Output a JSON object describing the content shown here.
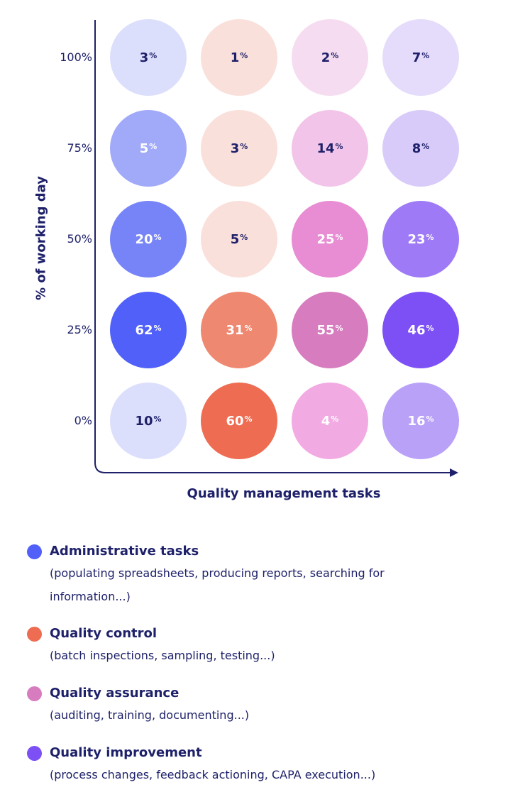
{
  "chart_data": {
    "type": "bubble-grid",
    "xlabel": "Quality management tasks",
    "ylabel": "% of working day",
    "y_ticks": [
      "100%",
      "75%",
      "50%",
      "25%",
      "0%"
    ],
    "categories": [
      "Administrative tasks",
      "Quality control",
      "Quality assurance",
      "Quality improvement"
    ],
    "series": [
      {
        "name": "Administrative tasks",
        "color": "#5060f8",
        "values": {
          "100%": 3,
          "75%": 5,
          "50%": 20,
          "25%": 62,
          "0%": 10
        },
        "cell_colors": [
          "#dcdffc",
          "#a1a9f9",
          "#7784f8",
          "#5060f8",
          "#dcdffc"
        ]
      },
      {
        "name": "Quality control",
        "color": "#ee6c52",
        "values": {
          "100%": 1,
          "75%": 3,
          "50%": 5,
          "25%": 31,
          "0%": 60
        },
        "cell_colors": [
          "#fae0db",
          "#fae0db",
          "#fae0db",
          "#ef8870",
          "#ee6c52"
        ]
      },
      {
        "name": "Quality assurance",
        "color": "#d67cbf",
        "values": {
          "100%": 2,
          "75%": 14,
          "50%": 25,
          "25%": 55,
          "0%": 4
        },
        "cell_colors": [
          "#f6dcf0",
          "#f2c4e9",
          "#e88cd3",
          "#d67cbf",
          "#f2aae2"
        ]
      },
      {
        "name": "Quality improvement",
        "color": "#7d50f5",
        "values": {
          "100%": 7,
          "75%": 8,
          "50%": 23,
          "25%": 46,
          "0%": 16
        },
        "cell_colors": [
          "#e5dcfb",
          "#d8cbfa",
          "#9e7af7",
          "#7d50f5",
          "#b9a1f8"
        ]
      }
    ],
    "value_suffix": "%"
  },
  "legend": [
    {
      "title": "Administrative tasks",
      "desc": [
        "(populating spreadsheets, producing reports, searching for",
        "information...)"
      ],
      "color": "#5060f8"
    },
    {
      "title": "Quality control",
      "desc": [
        "(batch inspections, sampling, testing...)"
      ],
      "color": "#ee6c52"
    },
    {
      "title": "Quality assurance",
      "desc": [
        "(auditing, training, documenting...)"
      ],
      "color": "#d67cbf"
    },
    {
      "title": "Quality improvement",
      "desc": [
        "(process changes, feedback actioning, CAPA execution...)"
      ],
      "color": "#7d50f5"
    }
  ]
}
